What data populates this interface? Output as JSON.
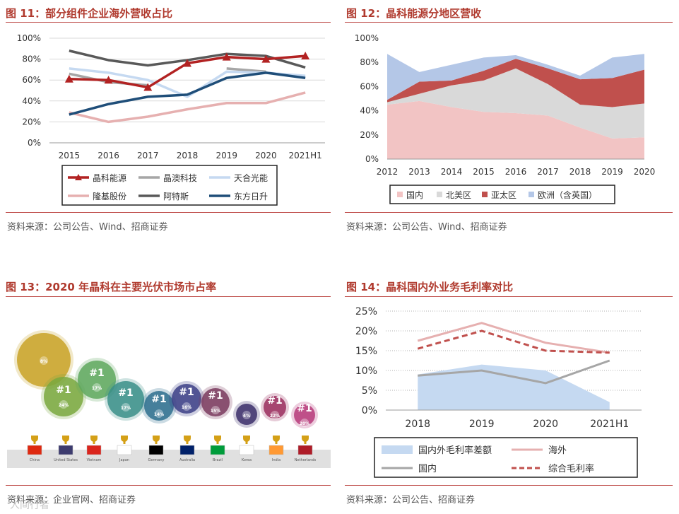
{
  "chart_data": [
    {
      "type": "line",
      "title": "图 11：部分组件企业海外营收占比",
      "source": "资料来源：公司公告、Wind、招商证券",
      "categories": [
        "2015",
        "2016",
        "2017",
        "2018",
        "2019",
        "2020",
        "2021H1"
      ],
      "ylim": [
        0,
        1
      ],
      "yticks": [
        "0%",
        "20%",
        "40%",
        "60%",
        "80%",
        "100%"
      ],
      "series": [
        {
          "name": "晶科能源",
          "color": "#b22222",
          "marker": "triangle",
          "values": [
            0.61,
            0.6,
            0.53,
            0.76,
            0.82,
            0.8,
            0.83
          ]
        },
        {
          "name": "晶澳科技",
          "color": "#a6a6a6",
          "marker": "none",
          "values": [
            0.66,
            0.58,
            0.55,
            null,
            0.71,
            0.68,
            null
          ]
        },
        {
          "name": "天合光能",
          "color": "#c5d9f1",
          "marker": "none",
          "values": [
            0.71,
            0.67,
            0.6,
            0.44,
            0.68,
            0.67,
            0.64
          ]
        },
        {
          "name": "隆基股份",
          "color": "#e6b0b0",
          "marker": "none",
          "values": [
            0.29,
            0.2,
            0.25,
            0.32,
            0.38,
            0.38,
            0.48
          ]
        },
        {
          "name": "阿特斯",
          "color": "#595959",
          "marker": "none",
          "values": [
            0.88,
            0.79,
            0.74,
            0.79,
            0.85,
            0.83,
            0.72
          ]
        },
        {
          "name": "东方日升",
          "color": "#1f4e79",
          "marker": "none",
          "values": [
            0.27,
            0.37,
            0.44,
            0.46,
            0.62,
            0.67,
            0.62
          ]
        }
      ]
    },
    {
      "type": "area",
      "title": "图 12：晶科能源分地区营收",
      "source": "资料来源：公司公告、Wind、招商证券",
      "categories": [
        "2012",
        "2013",
        "2014",
        "2015",
        "2016",
        "2017",
        "2018",
        "2019",
        "2020"
      ],
      "ylim": [
        0,
        1
      ],
      "yticks": [
        "0%",
        "20%",
        "40%",
        "60%",
        "80%",
        "100%"
      ],
      "stacked": true,
      "series": [
        {
          "name": "国内",
          "color": "#f2c4c4",
          "values": [
            0.45,
            0.48,
            0.43,
            0.39,
            0.38,
            0.36,
            0.26,
            0.17,
            0.18
          ]
        },
        {
          "name": "北美区",
          "color": "#d9d9d9",
          "values": [
            0.02,
            0.06,
            0.18,
            0.26,
            0.37,
            0.26,
            0.19,
            0.26,
            0.28
          ]
        },
        {
          "name": "亚太区",
          "color": "#c0504d",
          "values": [
            0.02,
            0.1,
            0.04,
            0.08,
            0.08,
            0.13,
            0.21,
            0.24,
            0.28
          ]
        },
        {
          "name": "欧洲（含英国）",
          "color": "#b4c7e7",
          "values": [
            0.38,
            0.08,
            0.13,
            0.11,
            0.03,
            0.03,
            0.03,
            0.17,
            0.13
          ]
        }
      ]
    },
    {
      "type": "scatter",
      "title": "图 13：2020 年晶科在主要光伏市场市占率",
      "source": "资料来源：企业官网、招商证券",
      "categories": [
        "China",
        "United States",
        "Vietnam",
        "Japan",
        "Germany",
        "Australia",
        "Brazil",
        "Korea",
        "India",
        "Netherlands"
      ],
      "series": [
        {
          "name": "市占率",
          "values": [
            0.08,
            0.24,
            0.17,
            0.17,
            0.14,
            0.16,
            0.15,
            0.04,
            0.22,
            0.2
          ]
        }
      ],
      "labels": [
        "8%",
        "24%",
        "17%",
        "17%",
        "14%",
        "16%",
        "15%",
        "4%",
        "22%",
        "20%"
      ],
      "ranks": [
        "",
        "#1",
        "#1",
        "#1",
        "#1",
        "#1",
        "#1",
        "",
        "#1",
        "#1"
      ],
      "colors": [
        "#c9a227",
        "#7aa83e",
        "#5fa85e",
        "#3a8f88",
        "#2e6f8e",
        "#3c3f86",
        "#7a3a5e",
        "#3b2f6a",
        "#9a2e5e",
        "#b6397a"
      ]
    },
    {
      "type": "line",
      "title": "图 14：晶科国内外业务毛利率对比",
      "source": "资料来源：公司公告、招商证券",
      "categories": [
        "2018",
        "2019",
        "2020",
        "2021H1"
      ],
      "ylim": [
        0,
        0.25
      ],
      "yticks": [
        "0%",
        "5%",
        "10%",
        "15%",
        "20%",
        "25%"
      ],
      "series": [
        {
          "name": "国内外毛利率差额",
          "color": "#c5d9f1",
          "style": "area",
          "values": [
            0.09,
            0.115,
            0.1,
            0.02
          ]
        },
        {
          "name": "海外",
          "color": "#e6b0b0",
          "style": "solid",
          "values": [
            0.175,
            0.22,
            0.17,
            0.145
          ]
        },
        {
          "name": "国内",
          "color": "#a6a6a6",
          "style": "solid",
          "values": [
            0.087,
            0.1,
            0.068,
            0.125
          ]
        },
        {
          "name": "综合毛利率",
          "color": "#c0504d",
          "style": "dashed",
          "values": [
            0.155,
            0.2,
            0.15,
            0.145
          ]
        }
      ]
    }
  ],
  "watermark": "人间行者"
}
